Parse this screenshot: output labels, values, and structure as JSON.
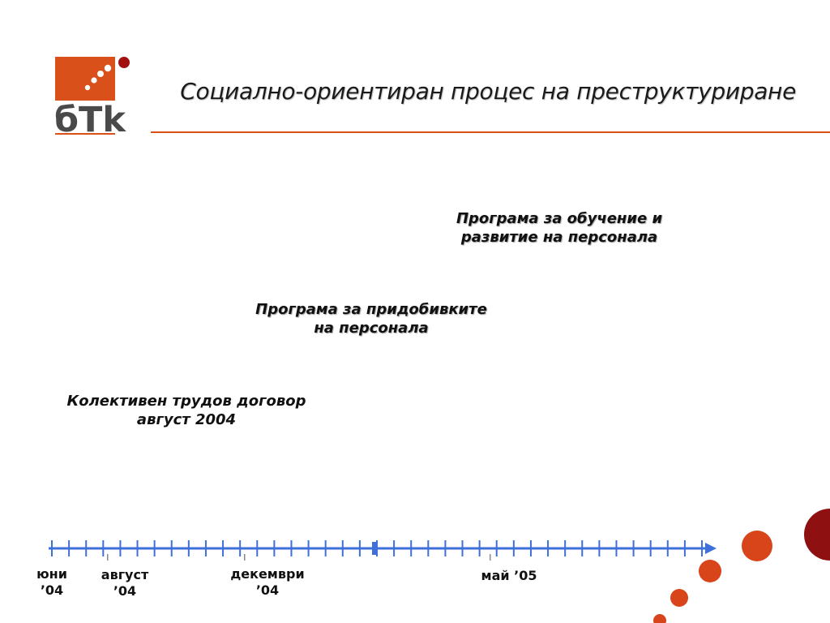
{
  "logo": {
    "text": "бTk",
    "brand_color": "#d9501a",
    "dot_color": "#a01010"
  },
  "header": {
    "title": "Социално-ориентиран процес на преструктуриране",
    "rule_color": "#d9501a"
  },
  "milestones": {
    "training": {
      "line1": "Програма за обучение и",
      "line2": "развитие на персонала"
    },
    "benefits": {
      "line1": "Програма за придобивките",
      "line2": "на персонала"
    },
    "collective_agreement": {
      "line1": "Колективен трудов договор",
      "line2": "август 2004"
    }
  },
  "timeline": {
    "axis_color": "#3f6fd8",
    "labels": {
      "june": {
        "line1": "юни",
        "line2": "’04"
      },
      "august": {
        "line1": "август",
        "line2": "’04"
      },
      "december": {
        "line1": "декември",
        "line2": "’04"
      },
      "may": {
        "line1": "май ’05"
      }
    }
  },
  "decor": {
    "circle_color": "#d9451a",
    "dark_circle_color": "#8e1010"
  }
}
